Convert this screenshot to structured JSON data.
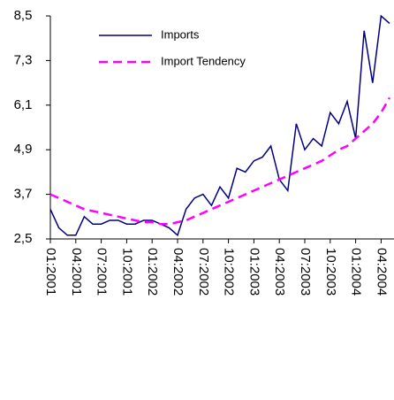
{
  "chart_data": {
    "type": "line",
    "categories": [
      "01:2001",
      null,
      null,
      "04:2001",
      null,
      null,
      "07:2001",
      null,
      null,
      "10:2001",
      null,
      null,
      "01:2002",
      null,
      null,
      "04:2002",
      null,
      null,
      "07:2002",
      null,
      null,
      "10:2002",
      null,
      null,
      "01:2003",
      null,
      null,
      "04:2003",
      null,
      null,
      "07:2003",
      null,
      null,
      "10:2003",
      null,
      null,
      "01:2004",
      null,
      null,
      "04:2004",
      null
    ],
    "series": [
      {
        "name": "Imports",
        "color": "#000080",
        "dashed": false,
        "values": [
          3.3,
          2.8,
          2.6,
          2.6,
          3.1,
          2.9,
          2.9,
          3.0,
          3.0,
          2.9,
          2.9,
          3.0,
          3.0,
          2.9,
          2.8,
          2.6,
          3.3,
          3.6,
          3.7,
          3.4,
          3.9,
          3.6,
          4.4,
          4.3,
          4.6,
          4.7,
          5.0,
          4.1,
          3.8,
          5.6,
          4.9,
          5.2,
          5.0,
          5.9,
          5.6,
          6.2,
          5.2,
          8.1,
          6.7,
          8.5,
          8.3
        ]
      },
      {
        "name": "Import Tendency",
        "color": "#ff00ff",
        "dashed": true,
        "values": [
          3.7,
          3.6,
          3.5,
          3.4,
          3.3,
          3.25,
          3.2,
          3.15,
          3.1,
          3.05,
          3.0,
          2.95,
          2.95,
          2.9,
          2.9,
          2.95,
          3.0,
          3.1,
          3.2,
          3.3,
          3.4,
          3.5,
          3.6,
          3.7,
          3.8,
          3.9,
          4.0,
          4.1,
          4.2,
          4.3,
          4.4,
          4.5,
          4.6,
          4.75,
          4.9,
          5.0,
          5.2,
          5.4,
          5.6,
          5.9,
          6.3
        ]
      }
    ],
    "ylim": [
      2.5,
      8.5
    ],
    "yticks": [
      {
        "value": 2.5,
        "label": "2,5"
      },
      {
        "value": 3.7,
        "label": "3,7"
      },
      {
        "value": 4.9,
        "label": "4,9"
      },
      {
        "value": 6.1,
        "label": "6,1"
      },
      {
        "value": 7.3,
        "label": "7,3"
      },
      {
        "value": 8.5,
        "label": "8,5"
      }
    ]
  }
}
